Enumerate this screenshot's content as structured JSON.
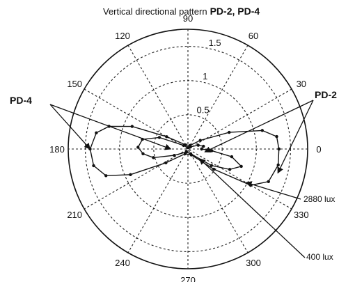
{
  "chart_data": {
    "type": "polar-line",
    "title_prefix": "Vertical directional pattern",
    "title_suffix": "PD-2, PD-4",
    "angle_ticks": [
      "0",
      "30",
      "60",
      "90",
      "120",
      "150",
      "180",
      "210",
      "240",
      "270",
      "300",
      "330"
    ],
    "radial_ticks": [
      "0.5",
      "1",
      "1.5"
    ],
    "rlim": [
      0,
      1.75
    ],
    "grid": true,
    "series": [
      {
        "marker": "dot",
        "points": [
          {
            "angle": 0,
            "r": 1.33
          },
          {
            "angle": 8,
            "r": 1.31
          },
          {
            "angle": 14,
            "r": 1.12
          },
          {
            "angle": 22,
            "r": 0.65
          },
          {
            "angle": 35,
            "r": 0.22
          },
          {
            "angle": 60,
            "r": 0.06
          },
          {
            "angle": 120,
            "r": 0.07
          },
          {
            "angle": 150,
            "r": 0.36
          },
          {
            "angle": 158,
            "r": 0.88
          },
          {
            "angle": 164,
            "r": 1.2
          },
          {
            "angle": 170,
            "r": 1.36
          },
          {
            "angle": 180,
            "r": 1.43
          },
          {
            "angle": 190,
            "r": 1.4
          },
          {
            "angle": 198,
            "r": 1.26
          },
          {
            "angle": 204,
            "r": 0.92
          },
          {
            "angle": 212,
            "r": 0.38
          },
          {
            "angle": 240,
            "r": 0.08
          },
          {
            "angle": 300,
            "r": 0.1
          },
          {
            "angle": 322,
            "r": 0.48
          },
          {
            "angle": 330,
            "r": 1.06
          },
          {
            "angle": 338,
            "r": 1.27
          },
          {
            "angle": 350,
            "r": 1.34
          },
          {
            "angle": 360,
            "r": 1.33
          }
        ]
      },
      {
        "marker": "dot",
        "points": [
          {
            "angle": 0,
            "r": 0.2
          },
          {
            "angle": 10,
            "r": 0.23
          },
          {
            "angle": 20,
            "r": 0.16
          },
          {
            "angle": 40,
            "r": 0.05
          },
          {
            "angle": 90,
            "r": 0.02
          },
          {
            "angle": 140,
            "r": 0.08
          },
          {
            "angle": 158,
            "r": 0.45
          },
          {
            "angle": 168,
            "r": 0.68
          },
          {
            "angle": 178,
            "r": 0.73
          },
          {
            "angle": 186,
            "r": 0.66
          },
          {
            "angle": 194,
            "r": 0.52
          },
          {
            "angle": 205,
            "r": 0.22
          },
          {
            "angle": 240,
            "r": 0.05
          },
          {
            "angle": 300,
            "r": 0.08
          },
          {
            "angle": 325,
            "r": 0.42
          },
          {
            "angle": 334,
            "r": 0.68
          },
          {
            "angle": 342,
            "r": 0.82
          },
          {
            "angle": 350,
            "r": 0.65
          },
          {
            "angle": 356,
            "r": 0.35
          },
          {
            "angle": 360,
            "r": 0.2
          }
        ]
      }
    ],
    "annotations": [
      {
        "text": "PD-4"
      },
      {
        "text": "PD-2"
      },
      {
        "text": "2880 lux"
      },
      {
        "text": "400 lux"
      }
    ]
  }
}
